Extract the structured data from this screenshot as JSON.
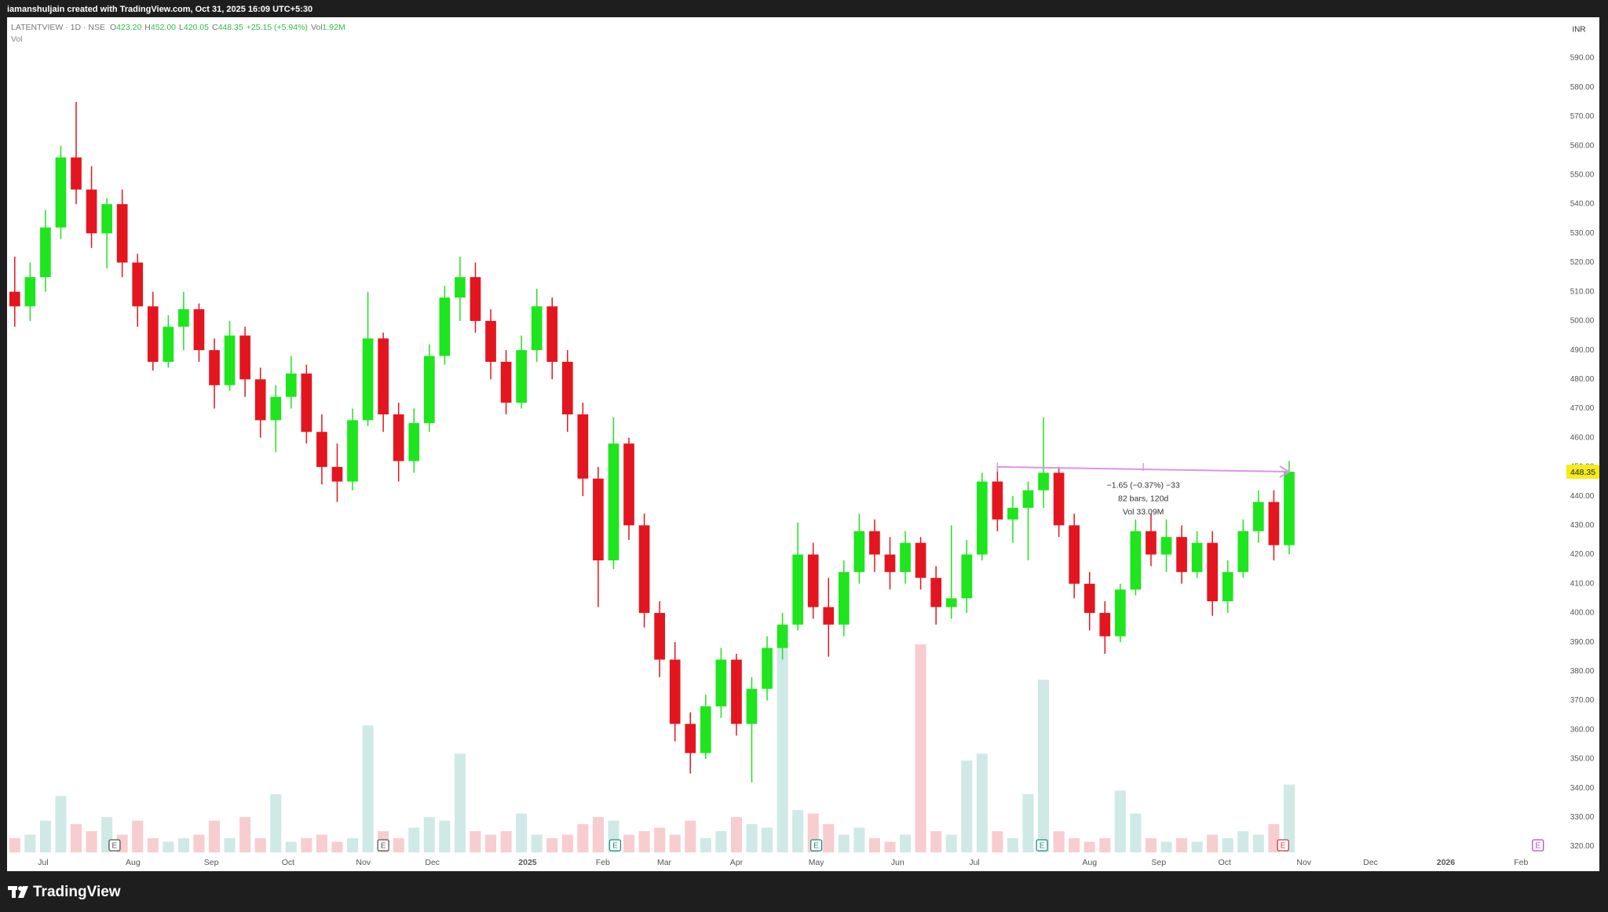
{
  "header": {
    "credit": "iamanshuljain created with TradingView.com, Oct 31, 2025 16:09 UTC+5:30"
  },
  "footer": {
    "brand": "TradingView"
  },
  "chart_data": {
    "type": "candlestick",
    "legend": {
      "symbol": "LATENTVIEW · 1D · NSE",
      "fields": [
        {
          "label": "O",
          "value": "423.20"
        },
        {
          "label": "H",
          "value": "452.00"
        },
        {
          "label": "L",
          "value": "420.05"
        },
        {
          "label": "C",
          "value": "448.35"
        }
      ],
      "change": "+25.15 (+5.94%)",
      "volume_label": "Vol",
      "volume": "1.92M"
    },
    "volume_pane_label": "Vol",
    "currency": "INR",
    "up_color": "#1ee51e",
    "down_color": "#e3161f",
    "vol_up_color": "#cfe9e7",
    "vol_down_color": "#f7cdd0",
    "ohlc": [
      [
        510,
        522,
        498,
        505
      ],
      [
        505,
        520,
        500,
        515
      ],
      [
        515,
        538,
        510,
        532
      ],
      [
        532,
        560,
        528,
        556
      ],
      [
        556,
        575,
        540,
        545
      ],
      [
        545,
        553,
        525,
        530
      ],
      [
        530,
        542,
        518,
        540
      ],
      [
        540,
        545,
        515,
        520
      ],
      [
        520,
        523,
        498,
        505
      ],
      [
        505,
        510,
        483,
        486
      ],
      [
        486,
        502,
        484,
        498
      ],
      [
        498,
        510,
        490,
        504
      ],
      [
        504,
        506,
        486,
        490
      ],
      [
        490,
        494,
        470,
        478
      ],
      [
        478,
        500,
        476,
        495
      ],
      [
        495,
        498,
        474,
        480
      ],
      [
        480,
        484,
        460,
        466
      ],
      [
        466,
        478,
        455,
        474
      ],
      [
        474,
        488,
        470,
        482
      ],
      [
        482,
        485,
        458,
        462
      ],
      [
        462,
        468,
        444,
        450
      ],
      [
        450,
        458,
        438,
        445
      ],
      [
        445,
        470,
        442,
        466
      ],
      [
        466,
        510,
        464,
        494
      ],
      [
        494,
        496,
        462,
        468
      ],
      [
        468,
        472,
        445,
        452
      ],
      [
        452,
        470,
        448,
        465
      ],
      [
        465,
        492,
        462,
        488
      ],
      [
        488,
        512,
        485,
        508
      ],
      [
        508,
        522,
        500,
        515
      ],
      [
        515,
        520,
        496,
        500
      ],
      [
        500,
        504,
        480,
        486
      ],
      [
        486,
        490,
        468,
        472
      ],
      [
        472,
        495,
        470,
        490
      ],
      [
        490,
        511,
        486,
        505
      ],
      [
        505,
        508,
        480,
        486
      ],
      [
        486,
        490,
        462,
        468
      ],
      [
        468,
        472,
        440,
        446
      ],
      [
        446,
        450,
        402,
        418
      ],
      [
        418,
        467,
        415,
        458
      ],
      [
        458,
        460,
        425,
        430
      ],
      [
        430,
        434,
        395,
        400
      ],
      [
        400,
        404,
        378,
        384
      ],
      [
        384,
        390,
        356,
        362
      ],
      [
        362,
        366,
        345,
        352
      ],
      [
        352,
        372,
        350,
        368
      ],
      [
        368,
        388,
        364,
        384
      ],
      [
        384,
        386,
        358,
        362
      ],
      [
        362,
        378,
        342,
        374
      ],
      [
        374,
        392,
        370,
        388
      ],
      [
        388,
        400,
        384,
        396
      ],
      [
        396,
        431,
        394,
        420
      ],
      [
        420,
        424,
        398,
        402
      ],
      [
        402,
        412,
        385,
        396
      ],
      [
        396,
        418,
        392,
        414
      ],
      [
        414,
        434,
        410,
        428
      ],
      [
        428,
        432,
        414,
        420
      ],
      [
        420,
        426,
        408,
        414
      ],
      [
        414,
        428,
        410,
        424
      ],
      [
        424,
        426,
        408,
        412
      ],
      [
        412,
        416,
        396,
        402
      ],
      [
        402,
        430,
        398,
        405
      ],
      [
        405,
        425,
        400,
        420
      ],
      [
        420,
        448,
        418,
        445
      ],
      [
        445,
        450,
        428,
        432
      ],
      [
        432,
        440,
        424,
        436
      ],
      [
        436,
        445,
        418,
        442
      ],
      [
        442,
        467,
        436,
        448
      ],
      [
        448,
        450,
        426,
        430
      ],
      [
        430,
        434,
        405,
        410
      ],
      [
        410,
        414,
        394,
        400
      ],
      [
        400,
        404,
        386,
        392
      ],
      [
        392,
        410,
        390,
        408
      ],
      [
        408,
        432,
        406,
        428
      ],
      [
        428,
        434,
        416,
        420
      ],
      [
        420,
        432,
        414,
        426
      ],
      [
        426,
        430,
        410,
        414
      ],
      [
        414,
        428,
        412,
        424
      ],
      [
        424,
        428,
        399,
        404
      ],
      [
        404,
        418,
        400,
        414
      ],
      [
        414,
        432,
        412,
        428
      ],
      [
        428,
        442,
        424,
        438
      ],
      [
        438,
        442,
        418,
        423.2
      ],
      [
        423.2,
        452,
        420.05,
        448.35
      ]
    ],
    "volume": [
      0.4,
      0.5,
      0.9,
      1.6,
      0.8,
      0.6,
      1.0,
      0.5,
      0.9,
      0.4,
      0.3,
      0.4,
      0.5,
      0.9,
      0.4,
      1.0,
      0.4,
      1.65,
      0.3,
      0.4,
      0.5,
      0.3,
      0.4,
      3.6,
      0.6,
      0.4,
      0.7,
      1.0,
      0.9,
      2.8,
      0.6,
      0.5,
      0.6,
      1.1,
      0.5,
      0.4,
      0.5,
      0.8,
      1.0,
      0.9,
      0.5,
      0.6,
      0.7,
      0.5,
      0.9,
      0.4,
      0.6,
      1.0,
      0.8,
      0.7,
      5.9,
      1.2,
      1.1,
      0.8,
      0.5,
      0.7,
      0.4,
      0.3,
      0.5,
      5.9,
      0.6,
      0.5,
      2.6,
      2.8,
      0.6,
      0.4,
      1.65,
      4.9,
      0.6,
      0.4,
      0.3,
      0.4,
      1.75,
      1.1,
      0.4,
      0.3,
      0.4,
      0.3,
      0.5,
      0.4,
      0.6,
      0.5,
      0.8,
      1.92
    ],
    "vlim": [
      0,
      12
    ],
    "xlim": [
      -0.5,
      100.9
    ],
    "xticks": [
      {
        "value": 1.85,
        "label": "Jul"
      },
      {
        "value": 7.7,
        "label": "Aug"
      },
      {
        "value": 12.8,
        "label": "Sep"
      },
      {
        "value": 17.8,
        "label": "Oct"
      },
      {
        "value": 22.7,
        "label": "Nov"
      },
      {
        "value": 27.2,
        "label": "Dec"
      },
      {
        "value": 33.4,
        "label": "2025"
      },
      {
        "value": 38.3,
        "label": "Feb"
      },
      {
        "value": 42.3,
        "label": "Mar"
      },
      {
        "value": 47.0,
        "label": "Apr"
      },
      {
        "value": 52.2,
        "label": "May"
      },
      {
        "value": 57.5,
        "label": "Jun"
      },
      {
        "value": 62.5,
        "label": "Jul"
      },
      {
        "value": 70.0,
        "label": "Aug"
      },
      {
        "value": 74.5,
        "label": "Sep"
      },
      {
        "value": 78.8,
        "label": "Oct"
      },
      {
        "value": 83.96,
        "label": "Nov"
      },
      {
        "value": 88.3,
        "label": "Dec"
      },
      {
        "value": 93.2,
        "label": "2026"
      },
      {
        "value": 98.1,
        "label": "Feb"
      }
    ],
    "ylim": [
      318,
      604
    ],
    "yticks": [
      {
        "value": 320,
        "label": "320.00"
      },
      {
        "value": 330,
        "label": "330.00"
      },
      {
        "value": 340,
        "label": "340.00"
      },
      {
        "value": 350,
        "label": "350.00"
      },
      {
        "value": 360,
        "label": "360.00"
      },
      {
        "value": 370,
        "label": "370.00"
      },
      {
        "value": 380,
        "label": "380.00"
      },
      {
        "value": 390,
        "label": "390.00"
      },
      {
        "value": 400,
        "label": "400.00"
      },
      {
        "value": 410,
        "label": "410.00"
      },
      {
        "value": 420,
        "label": "420.00"
      },
      {
        "value": 430,
        "label": "430.00"
      },
      {
        "value": 440,
        "label": "440.00"
      },
      {
        "value": 450,
        "label": "450.00"
      },
      {
        "value": 460,
        "label": "460.00"
      },
      {
        "value": 470,
        "label": "470.00"
      },
      {
        "value": 480,
        "label": "480.00"
      },
      {
        "value": 490,
        "label": "490.00"
      },
      {
        "value": 500,
        "label": "500.00"
      },
      {
        "value": 510,
        "label": "510.00"
      },
      {
        "value": 520,
        "label": "520.00"
      },
      {
        "value": 530,
        "label": "530.00"
      },
      {
        "value": 540,
        "label": "540.00"
      },
      {
        "value": 550,
        "label": "550.00"
      },
      {
        "value": 560,
        "label": "560.00"
      },
      {
        "value": 570,
        "label": "570.00"
      },
      {
        "value": 580,
        "label": "580.00"
      },
      {
        "value": 590,
        "label": "590.00"
      }
    ],
    "last_price": 448.35,
    "last_price_color": "#f5eb1a",
    "measure": {
      "start": 450,
      "end": 448.35,
      "color": "#dc94e8",
      "lines": [
        "−1.65 (−0.37%) −33",
        "82 bars, 120d",
        "Vol 33.09M"
      ]
    },
    "events": [
      {
        "label": "E",
        "color": "#555555"
      },
      {
        "label": "E",
        "color": "#555555"
      },
      {
        "label": "E",
        "color": "#1a8f7e"
      },
      {
        "label": "E",
        "color": "#1a8f7e"
      },
      {
        "label": "E",
        "color": "#1a8f7e"
      },
      {
        "label": "E",
        "color": "#d6333f"
      },
      {
        "label": "E",
        "color": "#b04bd6"
      }
    ]
  }
}
